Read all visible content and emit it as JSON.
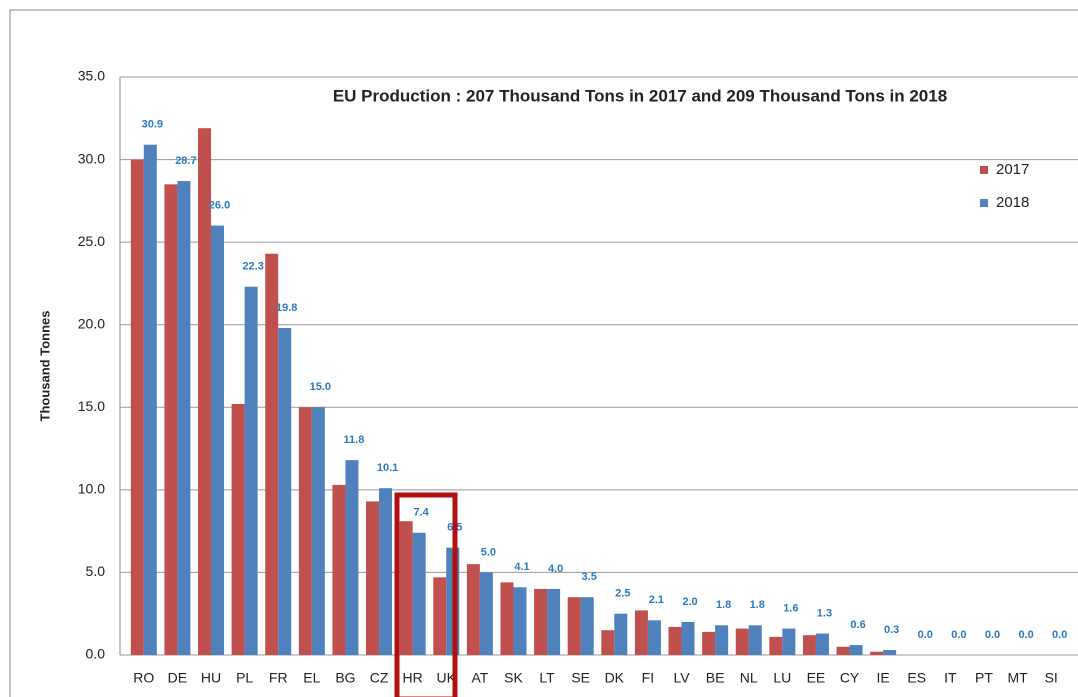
{
  "chart_data": {
    "type": "bar",
    "title": "EU Production : 207 Thousand Tons in 2017 and 209 Thousand Tons in 2018",
    "y_label": "Thousand Tonnes",
    "categories": [
      "RO",
      "DE",
      "HU",
      "PL",
      "FR",
      "EL",
      "BG",
      "CZ",
      "HR",
      "UK",
      "AT",
      "SK",
      "LT",
      "SE",
      "DK",
      "FI",
      "LV",
      "BE",
      "NL",
      "LU",
      "EE",
      "CY",
      "IE",
      "ES",
      "IT",
      "PT",
      "MT",
      "SI"
    ],
    "series": [
      {
        "name": "2017",
        "color": "#c0504d",
        "values": [
          30.0,
          28.5,
          31.9,
          15.2,
          24.3,
          15.0,
          10.3,
          9.3,
          8.1,
          4.7,
          5.5,
          4.4,
          4.0,
          3.5,
          1.5,
          2.7,
          1.7,
          1.4,
          1.6,
          1.1,
          1.2,
          0.5,
          0.2,
          0,
          0,
          0,
          0,
          0
        ]
      },
      {
        "name": "2018",
        "color": "#4f81bd",
        "values": [
          30.9,
          28.7,
          26.0,
          22.3,
          19.8,
          15.0,
          11.8,
          10.1,
          7.4,
          6.5,
          5.0,
          4.1,
          4.0,
          3.5,
          2.5,
          2.1,
          2.0,
          1.8,
          1.8,
          1.6,
          1.3,
          0.6,
          0.3,
          0,
          0,
          0,
          0,
          0
        ],
        "value_labels": [
          "30.9",
          "28.7",
          "26.0",
          "22.3",
          "19.8",
          "15.0",
          "11.8",
          "10.1",
          "7.4",
          "6.5",
          "5.0",
          "4.1",
          "4.0",
          "3.5",
          "2.5",
          "2.1",
          "2.0",
          "1.8",
          "1.8",
          "1.6",
          "1.3",
          "0.6",
          "0.3",
          "0.0",
          "0.0",
          "0.0",
          "0.0",
          "0.0"
        ]
      }
    ],
    "ylim": [
      0,
      35
    ],
    "yticks": [
      {
        "value": 0,
        "label": "0.0"
      },
      {
        "value": 5,
        "label": "5.0"
      },
      {
        "value": 10,
        "label": "10.0"
      },
      {
        "value": 15,
        "label": "15.0"
      },
      {
        "value": 20,
        "label": "20.0"
      },
      {
        "value": 25,
        "label": "25.0"
      },
      {
        "value": 30,
        "label": "30.0"
      },
      {
        "value": 35,
        "label": "35.0"
      }
    ],
    "grid": true,
    "legend": "right"
  }
}
